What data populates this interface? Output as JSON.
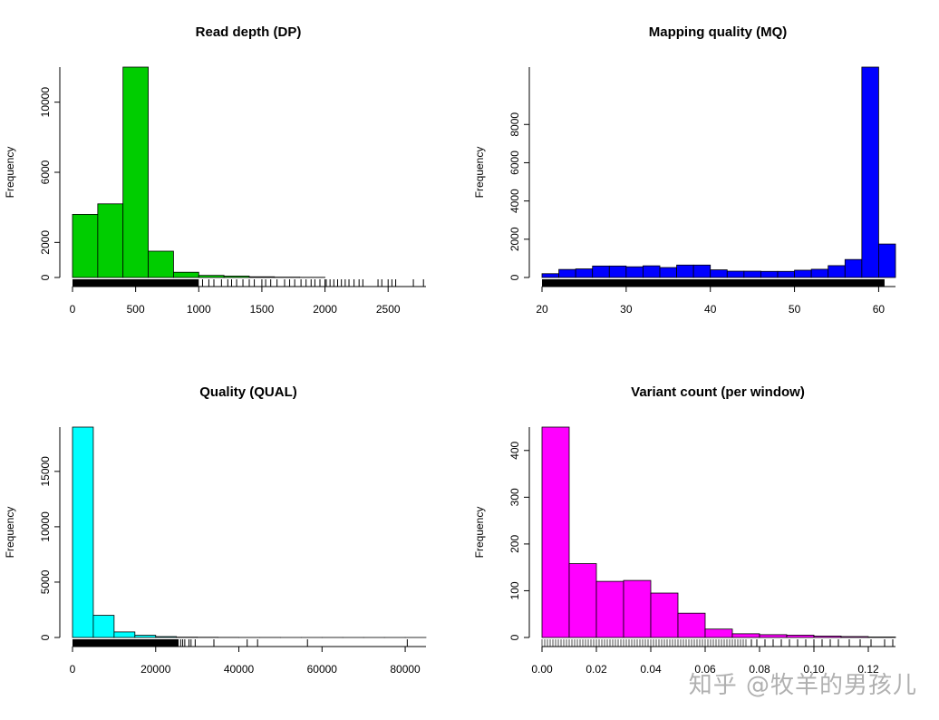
{
  "watermark": "知乎 @牧羊的男孩儿",
  "chart_data": [
    {
      "type": "bar",
      "title": "Read depth (DP)",
      "ylabel": "Frequency",
      "xlabel": "",
      "color": "#00cd00",
      "bin_edges": [
        0,
        200,
        400,
        600,
        800,
        1000,
        1200,
        1400,
        1600,
        1800,
        2000
      ],
      "values": [
        3600,
        4200,
        12000,
        1500,
        300,
        120,
        80,
        40,
        20,
        10
      ],
      "xlim": [
        0,
        2800
      ],
      "ylim": [
        0,
        12000
      ],
      "xticks": [
        0,
        500,
        1000,
        1500,
        2000,
        2500
      ],
      "xtick_labels": [
        "0",
        "500",
        "1000",
        "1500",
        "2000",
        "2500"
      ],
      "yticks": [
        0,
        2000,
        6000,
        10000
      ],
      "ytick_labels": [
        "0",
        "2000",
        "6000",
        "10000"
      ],
      "rug": {
        "dense_end": 1000,
        "sparse": [
          1030,
          1080,
          1120,
          1180,
          1230,
          1260,
          1300,
          1350,
          1400,
          1440,
          1500,
          1530,
          1570,
          1620,
          1680,
          1720,
          1760,
          1810,
          1850,
          1890,
          1920,
          1960,
          2000,
          2010,
          2040,
          2070,
          2100,
          2130,
          2160,
          2190,
          2230,
          2270,
          2300,
          2420,
          2450,
          2500,
          2530,
          2560,
          2700,
          2780
        ]
      }
    },
    {
      "type": "bar",
      "title": "Mapping quality (MQ)",
      "ylabel": "Frequency",
      "xlabel": "",
      "color": "#0000ff",
      "bin_edges": [
        20,
        22,
        24,
        26,
        28,
        30,
        32,
        34,
        36,
        38,
        40,
        42,
        44,
        46,
        48,
        50,
        52,
        54,
        56,
        58,
        60,
        62
      ],
      "values": [
        200,
        420,
        450,
        600,
        600,
        560,
        610,
        520,
        650,
        650,
        400,
        330,
        330,
        320,
        320,
        380,
        430,
        620,
        940,
        11000,
        1750
      ],
      "xlim": [
        20,
        62
      ],
      "ylim": [
        0,
        11000
      ],
      "xticks": [
        20,
        30,
        40,
        50,
        60
      ],
      "xtick_labels": [
        "20",
        "30",
        "40",
        "50",
        "60"
      ],
      "yticks": [
        0,
        2000,
        4000,
        6000,
        8000
      ],
      "ytick_labels": [
        "0",
        "2000",
        "4000",
        "6000",
        "8000"
      ],
      "rug": {
        "dense_end": 60.7,
        "sparse": []
      }
    },
    {
      "type": "bar",
      "title": "Quality (QUAL)",
      "ylabel": "Frequency",
      "xlabel": "",
      "color": "#00ffff",
      "bin_edges": [
        0,
        5000,
        10000,
        15000,
        20000,
        25000,
        30000,
        35000,
        40000,
        45000,
        50000,
        55000,
        60000,
        65000,
        70000,
        75000,
        80000,
        85000
      ],
      "values": [
        19000,
        2000,
        500,
        200,
        80,
        30,
        20,
        10,
        5,
        5,
        2,
        2,
        2,
        1,
        1,
        1,
        1
      ],
      "xlim": [
        0,
        85000
      ],
      "ylim": [
        0,
        19000
      ],
      "xticks": [
        0,
        20000,
        40000,
        60000,
        80000
      ],
      "xtick_labels": [
        "0",
        "20000",
        "40000",
        "60000",
        "80000"
      ],
      "yticks": [
        0,
        5000,
        10000,
        15000
      ],
      "ytick_labels": [
        "0",
        "5000",
        "10000",
        "15000"
      ],
      "rug": {
        "dense_end": 25500,
        "sparse": [
          26000,
          26500,
          27000,
          28000,
          28500,
          29500,
          34000,
          42000,
          44500,
          56500,
          80500
        ]
      }
    },
    {
      "type": "bar",
      "title": "Variant count (per window)",
      "ylabel": "Frequency",
      "xlabel": "",
      "color": "#ff00ff",
      "bin_edges": [
        0,
        0.01,
        0.02,
        0.03,
        0.04,
        0.05,
        0.06,
        0.07,
        0.08,
        0.09,
        0.1,
        0.11,
        0.12,
        0.13
      ],
      "values": [
        450,
        158,
        120,
        122,
        95,
        52,
        18,
        8,
        6,
        5,
        3,
        2,
        1
      ],
      "xlim": [
        0,
        0.13
      ],
      "ylim": [
        0,
        450
      ],
      "xticks": [
        0,
        0.02,
        0.04,
        0.06,
        0.08,
        0.1,
        0.12
      ],
      "xtick_labels": [
        "0.00",
        "0.02",
        "0.04",
        "0.06",
        "0.08",
        "0.10",
        "0.12"
      ],
      "yticks": [
        0,
        100,
        200,
        300,
        400
      ],
      "ytick_labels": [
        "0",
        "100",
        "200",
        "300",
        "400"
      ],
      "rug": {
        "dense_end": 0,
        "step": 0.001,
        "regular_end": 0.075,
        "sparse": [
          0.077,
          0.079,
          0.082,
          0.085,
          0.088,
          0.091,
          0.094,
          0.097,
          0.1,
          0.103,
          0.106,
          0.109,
          0.113,
          0.117,
          0.121,
          0.126,
          0.129
        ]
      }
    }
  ]
}
